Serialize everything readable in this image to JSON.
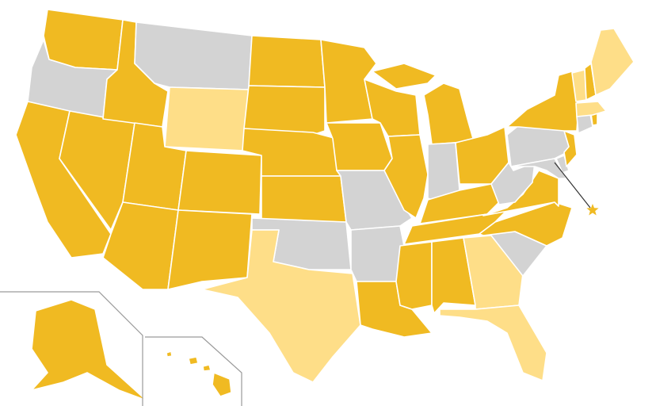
{
  "colors": {
    "gold": "#F0BA22",
    "light": "#FEDE88",
    "gray": "#D3D3D3",
    "pointer": "#333333"
  },
  "state_fill": {
    "WA": "gold",
    "OR": "gray",
    "CA": "gold",
    "NV": "gold",
    "ID": "gold",
    "MT": "gray",
    "WY": "light",
    "UT": "gold",
    "AZ": "gold",
    "CO": "gold",
    "NM": "gold",
    "ND": "gold",
    "SD": "gold",
    "NE": "gold",
    "KS": "gold",
    "OK": "gray",
    "TX": "light",
    "MN": "gold",
    "IA": "gold",
    "MO": "gray",
    "AR": "gray",
    "LA": "gold",
    "WI": "gold",
    "IL": "gold",
    "MI": "gold",
    "IN": "gray",
    "OH": "gold",
    "KY": "gold",
    "TN": "gold",
    "MS": "gold",
    "AL": "gold",
    "GA": "light",
    "FL": "light",
    "SC": "gray",
    "NC": "gold",
    "VA": "gold",
    "WV": "gray",
    "PA": "gray",
    "MD": "gray",
    "DE": "gray",
    "NJ": "gold",
    "NY": "gold",
    "CT": "gray",
    "RI": "gold",
    "MA": "light",
    "VT": "light",
    "NH": "gold",
    "ME": "light",
    "AK": "gold",
    "HI": "gold",
    "DC": "gold"
  }
}
